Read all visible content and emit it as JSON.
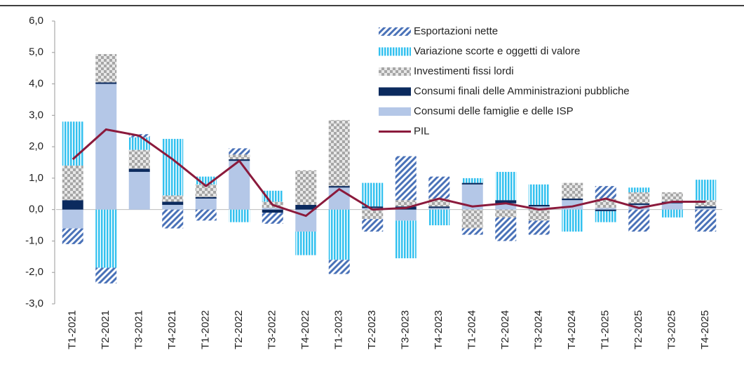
{
  "chart_data": {
    "type": "bar",
    "categories": [
      "T1-2021",
      "T2-2021",
      "T3-2021",
      "T4-2021",
      "T1-2022",
      "T2-2022",
      "T3-2022",
      "T4-2022",
      "T1-2023",
      "T2-2023",
      "T3-2023",
      "T4-2023",
      "T1-2024",
      "T2-2024",
      "T3-2024",
      "T4-2024",
      "T1-2025",
      "T2-2025",
      "T3-2025",
      "T4-2025"
    ],
    "series": [
      {
        "name": "Esportazioni nette",
        "color": "#4a72b8",
        "pattern": "hatch",
        "values": [
          -0.5,
          -0.5,
          0.1,
          -0.6,
          -0.35,
          0.2,
          -0.35,
          0,
          -0.45,
          -0.4,
          1.4,
          0.7,
          -0.2,
          -0.75,
          -0.45,
          0,
          0.4,
          -0.7,
          0,
          -0.7
        ]
      },
      {
        "name": "Variazione scorte e oggetti di valore",
        "color": "#33c1ef",
        "pattern": "stripes",
        "values": [
          1.4,
          -1.85,
          0.4,
          1.8,
          0.25,
          -0.4,
          0.35,
          -0.75,
          -1.6,
          0.75,
          -1.2,
          -0.5,
          0.15,
          0.9,
          0.65,
          -0.7,
          -0.35,
          0.15,
          -0.25,
          0.65
        ]
      },
      {
        "name": "Investimenti fissi lordi",
        "color": "#a6a6a6",
        "pattern": "checker",
        "values": [
          1.1,
          0.9,
          0.6,
          0.2,
          0.4,
          0.15,
          0.2,
          1.1,
          2.1,
          -0.3,
          0.2,
          0.25,
          -0.6,
          -0.25,
          -0.35,
          0.5,
          0.3,
          0.35,
          0.3,
          0.2
        ]
      },
      {
        "name": "Consumi finali delle Amministrazioni pubbliche",
        "color": "#0b2a5e",
        "pattern": "solid",
        "values": [
          0.3,
          0.05,
          0.1,
          0.1,
          0.05,
          0.05,
          -0.1,
          0.15,
          0.05,
          0.05,
          0.1,
          0.05,
          0.05,
          0.1,
          0.05,
          0.05,
          -0.05,
          0.05,
          0.05,
          0.05
        ]
      },
      {
        "name": "Consumi delle famiglie e delle ISP",
        "color": "#b4c7e7",
        "pattern": "solid",
        "values": [
          -0.6,
          4.0,
          1.2,
          0.15,
          0.35,
          1.55,
          0.05,
          -0.7,
          0.7,
          0.05,
          -0.35,
          0.05,
          0.8,
          0.2,
          0.1,
          0.3,
          0.05,
          0.15,
          0.2,
          0.05
        ]
      },
      {
        "name": "PIL",
        "color": "#8b1a3c",
        "type": "line",
        "values": [
          1.6,
          2.55,
          2.35,
          1.6,
          0.75,
          1.55,
          0.15,
          -0.2,
          0.65,
          0.0,
          0.05,
          0.35,
          0.1,
          0.2,
          0.0,
          0.1,
          0.35,
          0.05,
          0.25,
          0.25
        ]
      }
    ],
    "ylim": [
      -3,
      6
    ],
    "yticks": [
      {
        "value": -3,
        "label": "-3,0"
      },
      {
        "value": -2,
        "label": "-2,0"
      },
      {
        "value": -1,
        "label": "-1,0"
      },
      {
        "value": 0,
        "label": "0,0"
      },
      {
        "value": 1,
        "label": "1,0"
      },
      {
        "value": 2,
        "label": "2,0"
      },
      {
        "value": 3,
        "label": "3,0"
      },
      {
        "value": 4,
        "label": "4,0"
      },
      {
        "value": 5,
        "label": "5,0"
      },
      {
        "value": 6,
        "label": "6,0"
      }
    ]
  }
}
